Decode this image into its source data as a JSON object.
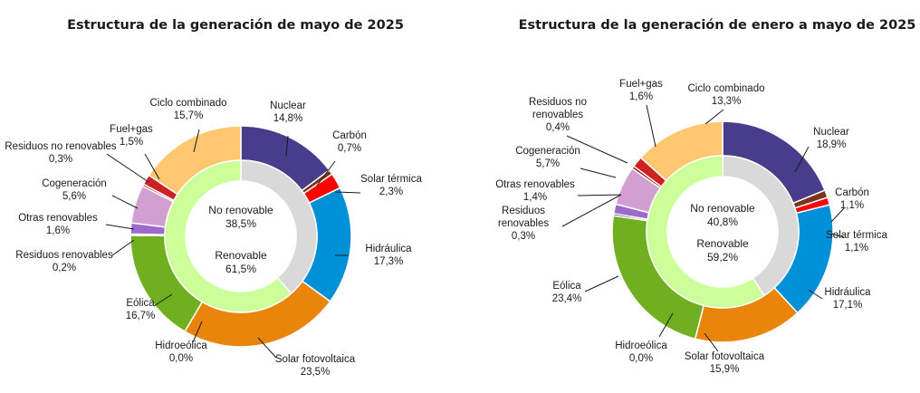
{
  "chart_data": [
    {
      "type": "donut",
      "title": "Estructura de la generación de mayo de 2025",
      "outer_ring": {
        "categories": [
          "Nuclear",
          "Carbón",
          "Solar térmica",
          "Hidráulica",
          "Solar fotovoltaica",
          "Hidroeólica",
          "Eólica",
          "Residuos renovables",
          "Otras renovables",
          "Cogeneración",
          "Residuos no renovables",
          "Fuel+gas",
          "Ciclo combinado"
        ],
        "values": [
          14.8,
          0.7,
          2.3,
          17.3,
          23.5,
          0.0,
          16.7,
          0.2,
          1.6,
          5.6,
          0.3,
          1.5,
          15.7
        ],
        "value_labels": [
          "14,8%",
          "0,7%",
          "2,3%",
          "17,3%",
          "23,5%",
          "0,0%",
          "16,7%",
          "0,2%",
          "1,6%",
          "5,6%",
          "0,3%",
          "1,5%",
          "15,7%"
        ],
        "colors": [
          "#483d8b",
          "#7a3418",
          "#ff0000",
          "#0090d8",
          "#e8850a",
          "#2f6b3c",
          "#70b020",
          "#5b2a86",
          "#9b6acb",
          "#d2a0d0",
          "#990000",
          "#cc2222",
          "#ffc870"
        ]
      },
      "inner_ring": {
        "categories": [
          "No renovable",
          "Renovable"
        ],
        "values": [
          38.5,
          61.5
        ],
        "value_labels": [
          "38,5%",
          "61,5%"
        ],
        "colors": [
          "#d9d9d9",
          "#ccff99"
        ]
      }
    },
    {
      "type": "donut",
      "title": "Estructura de la generación de enero a mayo de 2025",
      "outer_ring": {
        "categories": [
          "Nuclear",
          "Carbón",
          "Solar térmica",
          "Hidráulica",
          "Solar fotovoltaica",
          "Hidroeólica",
          "Eólica",
          "Residuos renovables",
          "Otras renovables",
          "Cogeneración",
          "Residuos no renovables",
          "Fuel+gas",
          "Ciclo combinado"
        ],
        "values": [
          18.9,
          1.1,
          1.1,
          17.1,
          15.9,
          0.0,
          23.4,
          0.3,
          1.4,
          5.7,
          0.4,
          1.6,
          13.3
        ],
        "value_labels": [
          "18,9%",
          "1,1%",
          "1,1%",
          "17,1%",
          "15,9%",
          "0,0%",
          "23,4%",
          "0,3%",
          "1,4%",
          "5,7%",
          "0,4%",
          "1,6%",
          "13,3%"
        ],
        "colors": [
          "#483d8b",
          "#7a3418",
          "#ff0000",
          "#0090d8",
          "#e8850a",
          "#2f6b3c",
          "#70b020",
          "#5b2a86",
          "#9b6acb",
          "#d2a0d0",
          "#990000",
          "#cc2222",
          "#ffc870"
        ]
      },
      "inner_ring": {
        "categories": [
          "No renovable",
          "Renovable"
        ],
        "values": [
          40.8,
          59.2
        ],
        "value_labels": [
          "40,8%",
          "59,2%"
        ],
        "colors": [
          "#d9d9d9",
          "#ccff99"
        ]
      }
    }
  ]
}
